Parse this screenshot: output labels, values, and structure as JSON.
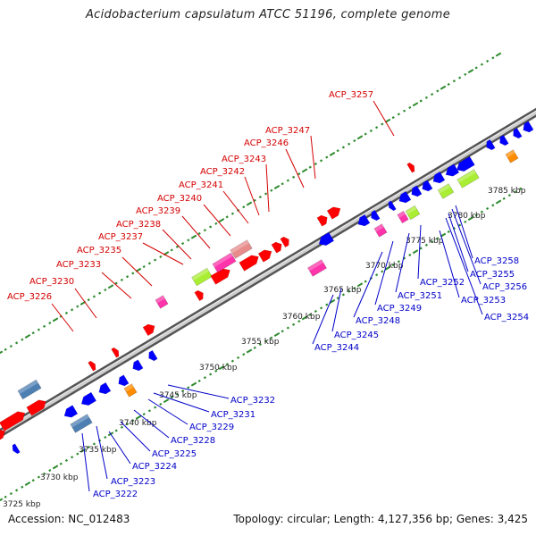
{
  "title": "Acidobacterium capsulatum ATCC 51196, complete genome",
  "footer": {
    "accession": "Accession: NC_012483",
    "summary": "Topology: circular; Length: 4,127,356 bp; Genes: 3,425"
  },
  "colors": {
    "forward_label": "#d40000",
    "reverse_label": "#0000c8",
    "tick_green": "#2e8b2e",
    "backbone": "#888888"
  },
  "scale_labels": [
    "3725 kbp",
    "3730 kbp",
    "3735 kbp",
    "3740 kbp",
    "3745 kbp",
    "3750 kbp",
    "3755 kbp",
    "3760 kbp",
    "3765 kbp",
    "3770 kbp",
    "3775 kbp",
    "3780 kbp",
    "3785 kbp"
  ],
  "forward_genes": [
    "ACP_3226",
    "ACP_3230",
    "ACP_3233",
    "ACP_3235",
    "ACP_3237",
    "ACP_3238",
    "ACP_3239",
    "ACP_3240",
    "ACP_3241",
    "ACP_3242",
    "ACP_3243",
    "ACP_3246",
    "ACP_3247",
    "ACP_3257"
  ],
  "reverse_genes": [
    "ACP_3222",
    "ACP_3223",
    "ACP_3224",
    "ACP_3225",
    "ACP_3228",
    "ACP_3229",
    "ACP_3231",
    "ACP_3232",
    "ACP_3244",
    "ACP_3245",
    "ACP_3248",
    "ACP_3249",
    "ACP_3251",
    "ACP_3252",
    "ACP_3253",
    "ACP_3254",
    "ACP_3255",
    "ACP_3256",
    "ACP_3258"
  ]
}
